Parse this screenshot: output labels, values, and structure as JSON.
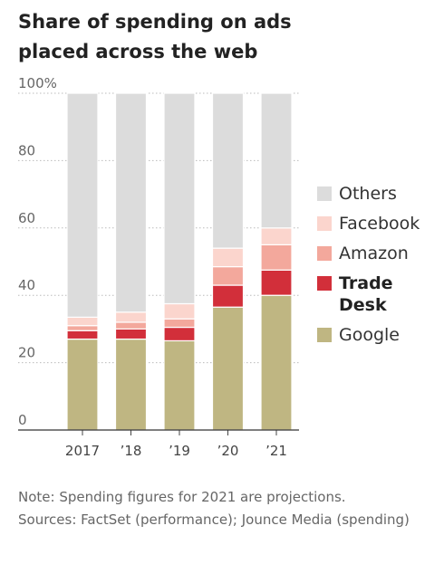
{
  "title": "Share of spending on ads placed across the web",
  "notes": {
    "note": "Note: Spending figures for 2021 are projections.",
    "sources": "Sources: FactSet (performance); Jounce Media (spending)"
  },
  "chart_data": {
    "type": "bar",
    "stacked": true,
    "title": "Share of spending on ads placed across the web",
    "xlabel": "",
    "ylabel": "",
    "ylim": [
      0,
      100
    ],
    "yticks": [
      0,
      20,
      40,
      60,
      80,
      100
    ],
    "ytick_labels": [
      "0",
      "20",
      "40",
      "60",
      "80",
      "100%"
    ],
    "categories": [
      "2017",
      "’18",
      "’19",
      "’20",
      "’21"
    ],
    "grid": true,
    "legend_position": "right",
    "series": [
      {
        "name": "Google",
        "color": "#bfb682",
        "values": [
          27,
          27,
          26.5,
          36.5,
          40
        ]
      },
      {
        "name": "Trade Desk",
        "color": "#d22f3a",
        "values": [
          2.5,
          3,
          4,
          6.5,
          7.5
        ]
      },
      {
        "name": "Amazon",
        "color": "#f3a89c",
        "values": [
          1.5,
          2,
          2.5,
          5.5,
          7.5
        ]
      },
      {
        "name": "Facebook",
        "color": "#fbd5cd",
        "values": [
          2.5,
          3,
          4.5,
          5.5,
          5
        ]
      },
      {
        "name": "Others",
        "color": "#dcdcdc",
        "values": [
          66.5,
          65,
          62.5,
          46,
          40
        ]
      }
    ],
    "legend": [
      {
        "label": "Others",
        "color": "#dcdcdc",
        "bold": false
      },
      {
        "label": "Facebook",
        "color": "#fbd5cd",
        "bold": false
      },
      {
        "label": "Amazon",
        "color": "#f3a89c",
        "bold": false
      },
      {
        "label": "Trade Desk",
        "color": "#d22f3a",
        "bold": true
      },
      {
        "label": "Google",
        "color": "#bfb682",
        "bold": false
      }
    ]
  }
}
